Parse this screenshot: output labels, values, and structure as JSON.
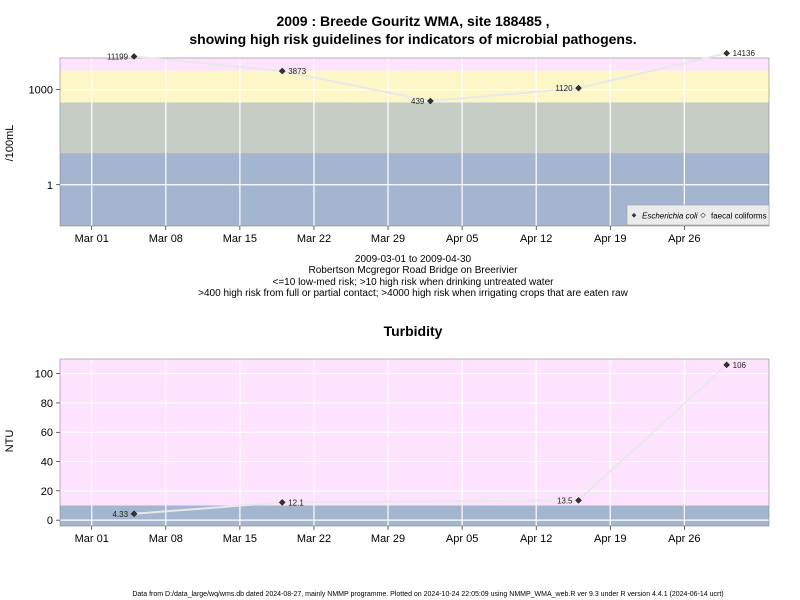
{
  "chart_data": [
    {
      "type": "scatter",
      "title_line1": "2009 : Breede Gouritz WMA, site 188485 ,",
      "title_line2": "showing high risk guidelines for indicators of microbial pathogens.",
      "ylabel": "/100mL",
      "yscale": "log",
      "ylim": [
        0.05,
        10000
      ],
      "yticks": [
        {
          "value": 1,
          "label": "1"
        },
        {
          "value": 1000,
          "label": "1000"
        }
      ],
      "xlim": [
        "2009-02-26",
        "2009-05-04"
      ],
      "xticks": [
        {
          "date": "2009-03-01",
          "label": "Mar 01"
        },
        {
          "date": "2009-03-08",
          "label": "Mar 08"
        },
        {
          "date": "2009-03-15",
          "label": "Mar 15"
        },
        {
          "date": "2009-03-22",
          "label": "Mar 22"
        },
        {
          "date": "2009-03-29",
          "label": "Mar 29"
        },
        {
          "date": "2009-04-05",
          "label": "Apr 05"
        },
        {
          "date": "2009-04-12",
          "label": "Apr 12"
        },
        {
          "date": "2009-04-19",
          "label": "Apr 19"
        },
        {
          "date": "2009-04-26",
          "label": "Apr 26"
        }
      ],
      "bands": [
        {
          "from": 0.05,
          "to": 10,
          "color": "#a3b5cf"
        },
        {
          "from": 10,
          "to": 400,
          "color": "#c5cdc5"
        },
        {
          "from": 400,
          "to": 4000,
          "color": "#fdf7c7"
        },
        {
          "from": 4000,
          "to": 10000,
          "color": "#fde3fd"
        }
      ],
      "series": [
        {
          "name": "Escherichia coli",
          "points": [
            {
              "date": "2009-03-05",
              "value": 11199,
              "label": "11199"
            },
            {
              "date": "2009-03-19",
              "value": 3873,
              "label": "3873"
            },
            {
              "date": "2009-04-02",
              "value": 439,
              "label": "439"
            },
            {
              "date": "2009-04-16",
              "value": 1120,
              "label": "1120"
            },
            {
              "date": "2009-04-30",
              "value": 14136,
              "label": "14136"
            }
          ]
        }
      ],
      "legend": {
        "position": "bottom-right",
        "entries": [
          "Escherichia coli",
          "faecal coliforms"
        ]
      },
      "notes": [
        "2009-03-01 to 2009-04-30",
        "Robertson Mcgregor Road Bridge on Breerivier",
        "<=10 low-med risk; >10 high risk when drinking untreated water",
        ">400 high risk from full or partial contact; >4000 high risk when irrigating crops that are eaten raw"
      ]
    },
    {
      "type": "scatter",
      "title": "Turbidity",
      "ylabel": "NTU",
      "ylim": [
        -4,
        110
      ],
      "yticks": [
        {
          "value": 0,
          "label": "0"
        },
        {
          "value": 20,
          "label": "20"
        },
        {
          "value": 40,
          "label": "40"
        },
        {
          "value": 60,
          "label": "60"
        },
        {
          "value": 80,
          "label": "80"
        },
        {
          "value": 100,
          "label": "100"
        }
      ],
      "xlim": [
        "2009-02-26",
        "2009-05-04"
      ],
      "xticks": [
        {
          "date": "2009-03-01",
          "label": "Mar 01"
        },
        {
          "date": "2009-03-08",
          "label": "Mar 08"
        },
        {
          "date": "2009-03-15",
          "label": "Mar 15"
        },
        {
          "date": "2009-03-22",
          "label": "Mar 22"
        },
        {
          "date": "2009-03-29",
          "label": "Mar 29"
        },
        {
          "date": "2009-04-05",
          "label": "Apr 05"
        },
        {
          "date": "2009-04-12",
          "label": "Apr 12"
        },
        {
          "date": "2009-04-19",
          "label": "Apr 19"
        },
        {
          "date": "2009-04-26",
          "label": "Apr 26"
        }
      ],
      "bands": [
        {
          "from": -4,
          "to": 10,
          "color": "#a3b5cf"
        },
        {
          "from": 10,
          "to": 110,
          "color": "#fde3fd"
        }
      ],
      "series": [
        {
          "points": [
            {
              "date": "2009-03-05",
              "value": 4.33,
              "label": "4.33"
            },
            {
              "date": "2009-03-19",
              "value": 12.1,
              "label": "12.1"
            },
            {
              "date": "2009-04-16",
              "value": 13.5,
              "label": "13.5"
            },
            {
              "date": "2009-04-30",
              "value": 106,
              "label": "106"
            }
          ]
        }
      ]
    }
  ],
  "footer": "Data from D:/data_large/wq/wms.db dated 2024-08-27, mainly NMMP programme. Plotted on 2024-10-24 22:05:09 using NMMP_WMA_web.R ver 9.3 under R version 4.4.1 (2024-06-14 ucrt)"
}
